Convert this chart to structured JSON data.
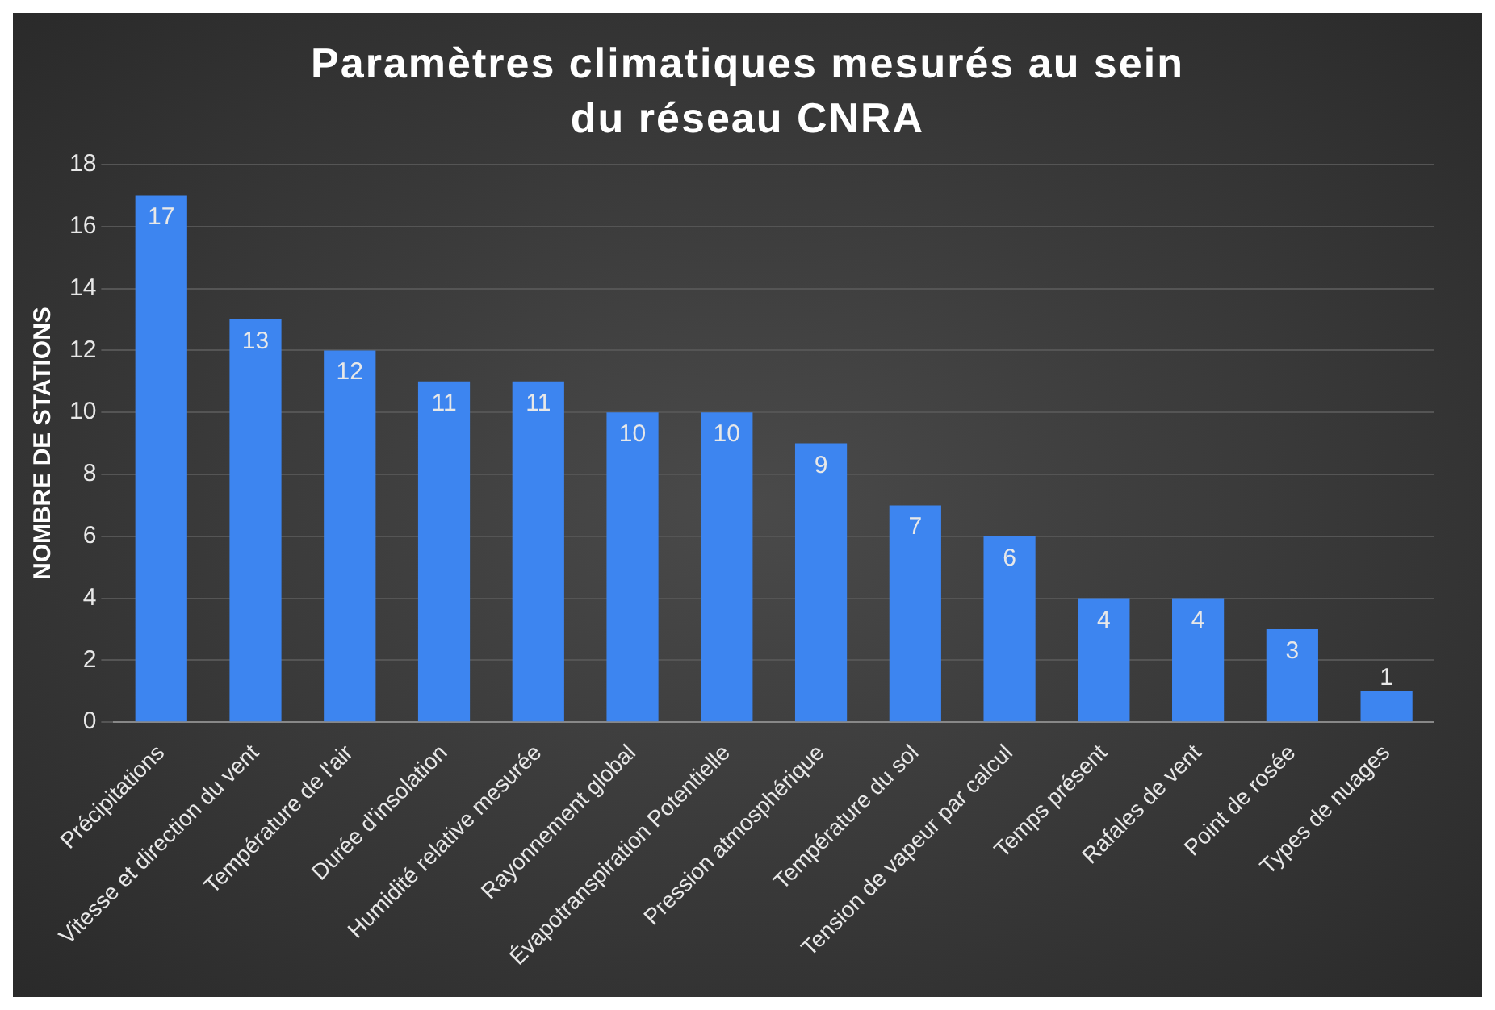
{
  "chart_data": {
    "type": "bar",
    "title": "Paramètres climatiques mesurés au sein du réseau CNRA",
    "ylabel": "NOMBRE DE STATIONS",
    "categories": [
      "Précipitations",
      "Vitesse et direction du vent",
      "Température de l'air",
      "Durée d'insolation",
      "Humidité relative mesurée",
      "Rayonnement global",
      "Évapotranspiration Potentielle",
      "Pression atmosphérique",
      "Température du sol",
      "Tension de vapeur par calcul",
      "Temps présent",
      "Rafales de vent",
      "Point de rosée",
      "Types de nuages"
    ],
    "values": [
      17,
      13,
      12,
      11,
      11,
      10,
      10,
      9,
      7,
      6,
      4,
      4,
      3,
      1
    ],
    "color": "#3d85f0",
    "ylim": [
      0,
      18
    ],
    "yticks": [
      0,
      2,
      4,
      6,
      8,
      10,
      12,
      14,
      16,
      18
    ],
    "grid": "y",
    "data_labels": true
  }
}
